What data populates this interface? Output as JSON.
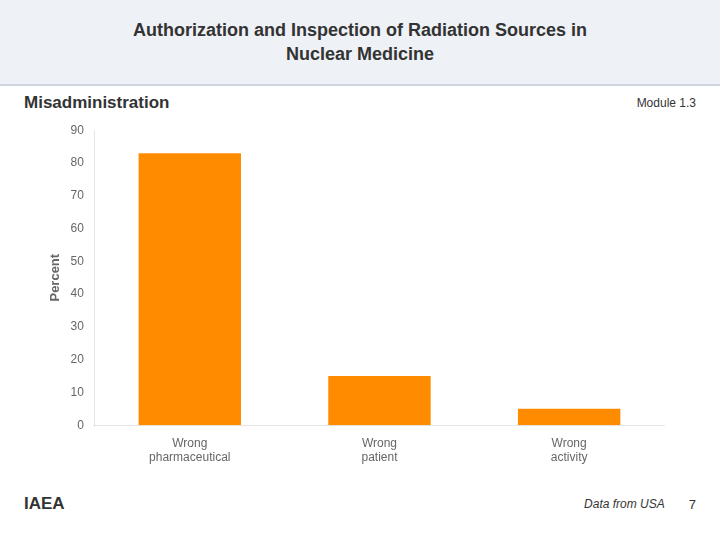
{
  "chart_data": {
    "type": "bar",
    "title": "Authorization and Inspection of Radiation Sources in\nNuclear Medicine",
    "subtitle": "Misadministration",
    "annotations": [
      "Module 1.3",
      "IAEA",
      "Data from USA",
      "7"
    ],
    "categories": [
      "Wrong\npharmaceutical",
      "Wrong\npatient",
      "Wrong\nactivity"
    ],
    "values": [
      83,
      15,
      5
    ],
    "color": "#FF8C00",
    "ylabel": "Percent",
    "ylim": [
      0,
      90
    ],
    "yticks": [
      0,
      10,
      20,
      30,
      40,
      50,
      60,
      70,
      80,
      90
    ],
    "grid": false
  }
}
